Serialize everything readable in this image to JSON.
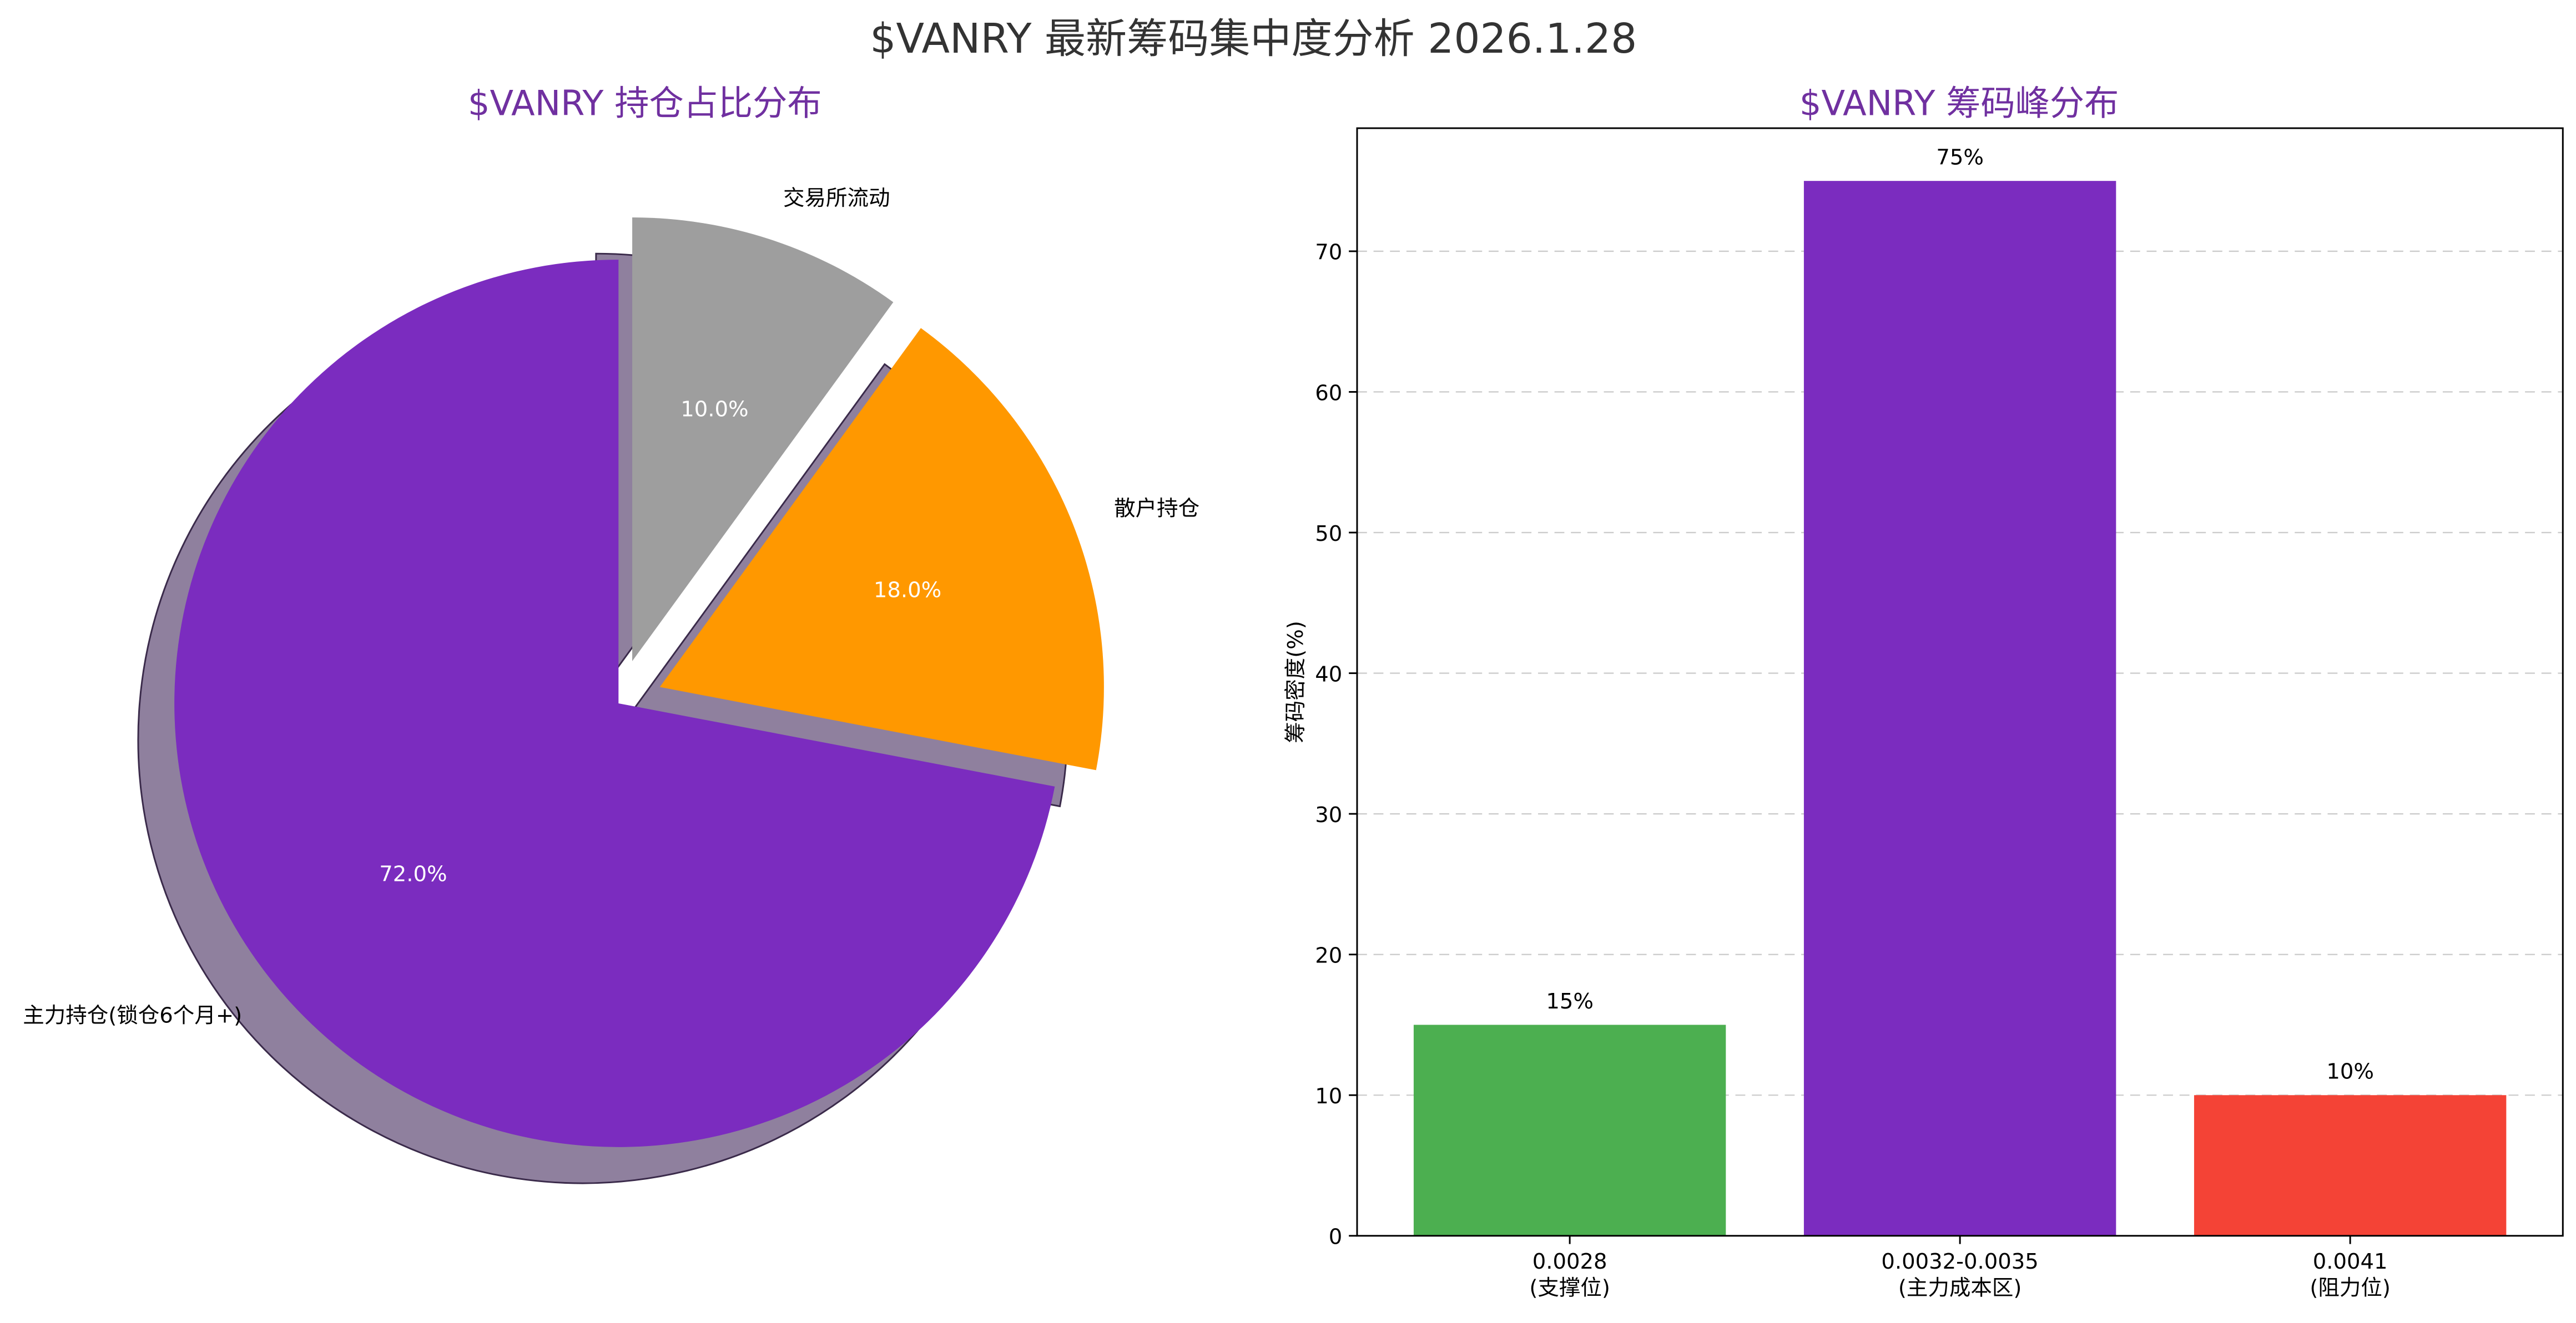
{
  "colors": {
    "title_purple": "#7030A0",
    "main_purple": "#7B2CBF",
    "orange": "#FF9800",
    "gray": "#9E9E9E",
    "green": "#4CAF50",
    "red": "#F44336",
    "suptitle": "#333333"
  },
  "suptitle": "$VANRY 最新筹码集中度分析 2026.1.28",
  "chart_data": [
    {
      "type": "pie",
      "title": "$VANRY 持仓占比分布",
      "slices": [
        {
          "label": "主力持仓(锁仓6个月+)",
          "pct_label": "72.0%",
          "value": 72.0,
          "color": "#7B2CBF",
          "explode": false
        },
        {
          "label": "散户持仓",
          "pct_label": "18.0%",
          "value": 18.0,
          "color": "#FF9800",
          "explode": true
        },
        {
          "label": "交易所流动",
          "pct_label": "10.0%",
          "value": 10.0,
          "color": "#9E9E9E",
          "explode": true
        }
      ],
      "start_angle_deg": 90,
      "direction": "counterclockwise",
      "shadow": true
    },
    {
      "type": "bar",
      "title": "$VANRY 筹码峰分布",
      "categories": [
        "0.0028\n(支撑位)",
        "0.0032-0.0035\n(主力成本区)",
        "0.0041\n(阻力位)"
      ],
      "category_lines": [
        [
          "0.0028",
          "(支撑位)"
        ],
        [
          "0.0032-0.0035",
          "(主力成本区)"
        ],
        [
          "0.0041",
          "(阻力位)"
        ]
      ],
      "values": [
        15,
        75,
        10
      ],
      "value_labels": [
        "15%",
        "75%",
        "10%"
      ],
      "colors": [
        "#4CAF50",
        "#7B2CBF",
        "#F44336"
      ],
      "xlabel": "",
      "ylabel": "筹码密度(%)",
      "ylim": [
        0,
        78.75
      ],
      "yticks": [
        0,
        10,
        20,
        30,
        40,
        50,
        60,
        70
      ],
      "grid": "horizontal dashed"
    }
  ]
}
